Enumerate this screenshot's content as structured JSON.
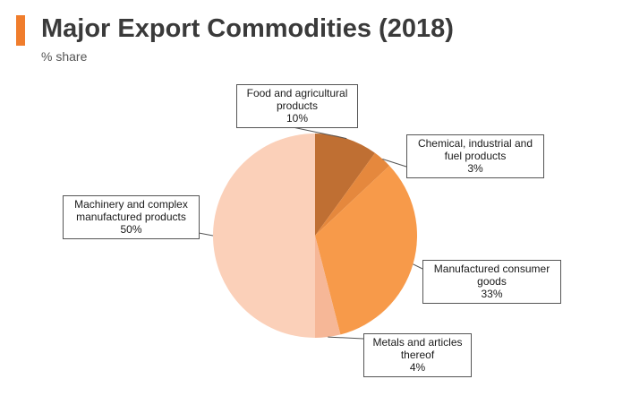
{
  "header": {
    "title": "Major Export Commodities (2018)",
    "subtitle": "% share",
    "accent_color": "#f07d2c"
  },
  "chart_data": {
    "type": "pie",
    "title": "Major Export Commodities (2018)",
    "subtitle": "% share",
    "unit": "%",
    "slices": [
      {
        "name": "Food and agricultural products",
        "value": 10,
        "label_lines": [
          "Food and agricultural",
          "products",
          "10%"
        ],
        "color": "#bf6f33"
      },
      {
        "name": "Chemical, industrial and fuel products",
        "value": 3,
        "label_lines": [
          "Chemical, industrial and",
          "fuel products",
          "3%"
        ],
        "color": "#e5883d"
      },
      {
        "name": "Manufactured consumer goods",
        "value": 33,
        "label_lines": [
          "Manufactured consumer",
          "goods",
          "33%"
        ],
        "color": "#f79a4a"
      },
      {
        "name": "Metals and articles thereof",
        "value": 4,
        "label_lines": [
          "Metals and articles",
          "thereof",
          "4%"
        ],
        "color": "#f6b797"
      },
      {
        "name": "Machinery and complex manufactured products",
        "value": 50,
        "label_lines": [
          "Machinery and complex",
          "manufactured products",
          "50%"
        ],
        "color": "#fbd0b9"
      }
    ],
    "start_angle_deg": 0,
    "direction": "clockwise"
  }
}
